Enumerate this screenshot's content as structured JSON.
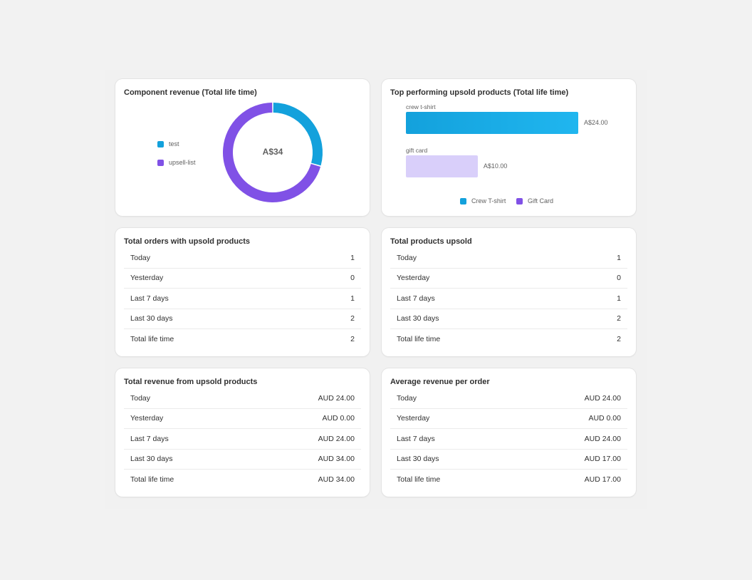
{
  "cards": {
    "component_revenue": {
      "title": "Component revenue (Total life time)",
      "center_label": "A$34",
      "legend": [
        {
          "label": "test",
          "color": "#13a1dc"
        },
        {
          "label": "upsell-list",
          "color": "#8051e6"
        }
      ]
    },
    "top_upsold": {
      "title": "Top performing upsold products (Total life time)",
      "legend": [
        {
          "label": "Crew T-shirt",
          "color": "#13a1dc"
        },
        {
          "label": "Gift Card",
          "color": "#8051e6"
        }
      ]
    },
    "total_orders": {
      "title": "Total orders with upsold products",
      "rows": [
        {
          "label": "Today",
          "value": "1"
        },
        {
          "label": "Yesterday",
          "value": "0"
        },
        {
          "label": "Last 7 days",
          "value": "1"
        },
        {
          "label": "Last 30 days",
          "value": "2"
        },
        {
          "label": "Total life time",
          "value": "2"
        }
      ]
    },
    "total_products": {
      "title": "Total products upsold",
      "rows": [
        {
          "label": "Today",
          "value": "1"
        },
        {
          "label": "Yesterday",
          "value": "0"
        },
        {
          "label": "Last 7 days",
          "value": "1"
        },
        {
          "label": "Last 30 days",
          "value": "2"
        },
        {
          "label": "Total life time",
          "value": "2"
        }
      ]
    },
    "total_revenue": {
      "title": "Total revenue from upsold products",
      "rows": [
        {
          "label": "Today",
          "value": "AUD 24.00"
        },
        {
          "label": "Yesterday",
          "value": "AUD 0.00"
        },
        {
          "label": "Last 7 days",
          "value": "AUD 24.00"
        },
        {
          "label": "Last 30 days",
          "value": "AUD 34.00"
        },
        {
          "label": "Total life time",
          "value": "AUD 34.00"
        }
      ]
    },
    "avg_revenue": {
      "title": "Average revenue per order",
      "rows": [
        {
          "label": "Today",
          "value": "AUD 24.00"
        },
        {
          "label": "Yesterday",
          "value": "AUD 0.00"
        },
        {
          "label": "Last 7 days",
          "value": "AUD 24.00"
        },
        {
          "label": "Last 30 days",
          "value": "AUD 17.00"
        },
        {
          "label": "Total life time",
          "value": "AUD 17.00"
        }
      ]
    }
  },
  "chart_data": [
    {
      "type": "pie",
      "title": "Component revenue (Total life time)",
      "categories": [
        "test",
        "upsell-list"
      ],
      "values": [
        10,
        24
      ],
      "colors": [
        "#13a1dc",
        "#8051e6"
      ],
      "center_label": "A$34",
      "legend_position": "left"
    },
    {
      "type": "bar",
      "orientation": "horizontal",
      "title": "Top performing upsold products (Total life time)",
      "categories": [
        "crew t-shirt",
        "gift card"
      ],
      "values": [
        24,
        10
      ],
      "value_labels": [
        "A$24.00",
        "A$10.00"
      ],
      "colors": [
        "#13a1dc",
        "#d9cffa"
      ],
      "series": [
        {
          "name": "Crew T-shirt",
          "values": [
            24,
            0
          ]
        },
        {
          "name": "Gift Card",
          "values": [
            0,
            10
          ]
        }
      ],
      "xlim": [
        0,
        24
      ],
      "grid": false,
      "legend_position": "bottom"
    }
  ]
}
